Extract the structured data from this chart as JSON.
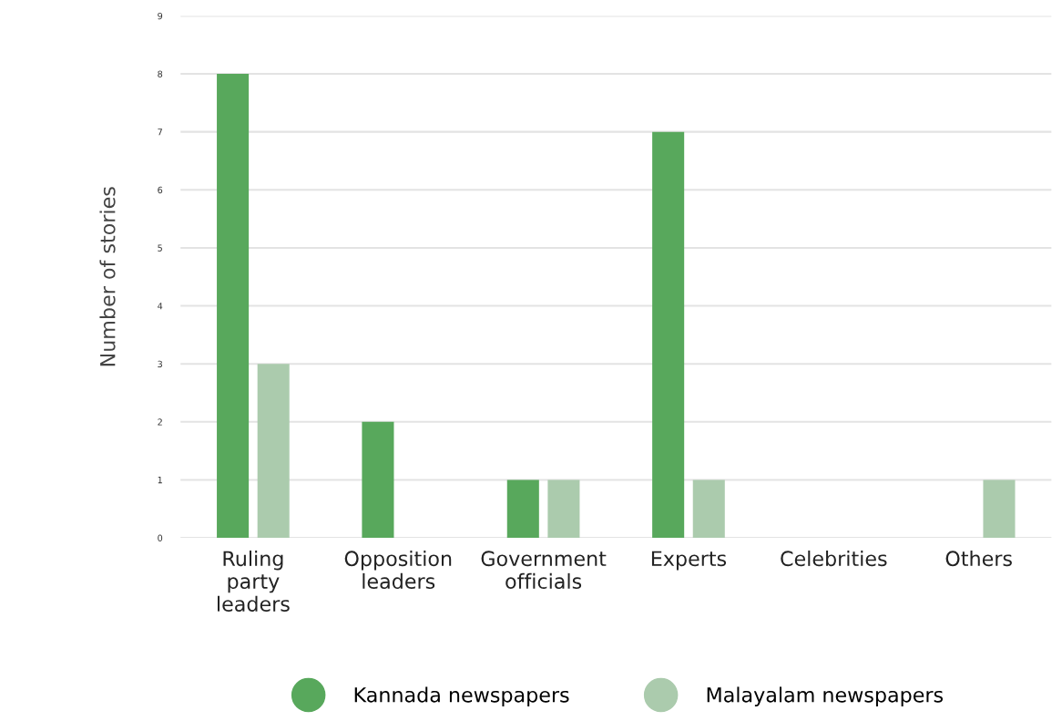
{
  "chart_data": {
    "type": "bar",
    "ylabel": "Number of stories",
    "categories": [
      "Ruling\nparty\nleaders",
      "Opposition\nleaders",
      "Government\nofficials",
      "Experts",
      "Celebrities",
      "Others"
    ],
    "series": [
      {
        "name": "Kannada newspapers",
        "color": "#58a85c",
        "values": [
          8,
          2,
          1,
          7,
          0,
          0
        ]
      },
      {
        "name": "Malayalam newspapers",
        "color": "#abcbad",
        "values": [
          3,
          0,
          1,
          1,
          0,
          1
        ]
      }
    ],
    "ylim": [
      0,
      9
    ],
    "yticks": [
      0,
      1,
      2,
      3,
      4,
      5,
      6,
      7,
      8,
      9
    ],
    "grid": "y",
    "legend": "bottom"
  }
}
